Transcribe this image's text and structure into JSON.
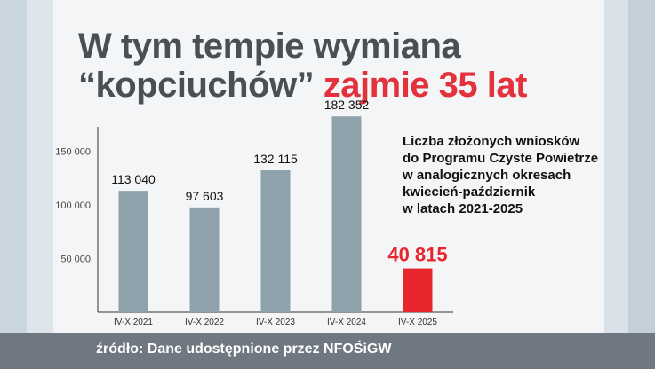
{
  "headline": {
    "part1": "W tym tempie wymiana",
    "part2": "“kopciuchów”",
    "accent": "zajmie 35 lat"
  },
  "description": [
    "Liczba złożonych wniosków",
    "do Programu Czyste Powietrze",
    "w analogicznych okresach",
    "kwiecień-październik",
    "w latach 2021-2025"
  ],
  "footer": "źródło: Dane udostępnione przez NFOŚiGW",
  "colors": {
    "bar": "#8fa1ab",
    "highlight": "#e8262e",
    "title": "#4a4f55",
    "accent": "#e3323b"
  },
  "chart_data": {
    "type": "bar",
    "categories": [
      "IV-X 2021",
      "IV-X 2022",
      "IV-X 2023",
      "IV-X 2024",
      "IV-X 2025"
    ],
    "values": [
      113040,
      97603,
      132115,
      182352,
      40815
    ],
    "value_labels": [
      "113 040",
      "97 603",
      "132 115",
      "182 352",
      "40 815"
    ],
    "highlight_index": 4,
    "yticks": [
      50000,
      100000,
      150000
    ],
    "ytick_labels": [
      "50 000",
      "100 000",
      "150 000"
    ],
    "ylim": [
      0,
      185000
    ],
    "grid": false
  }
}
